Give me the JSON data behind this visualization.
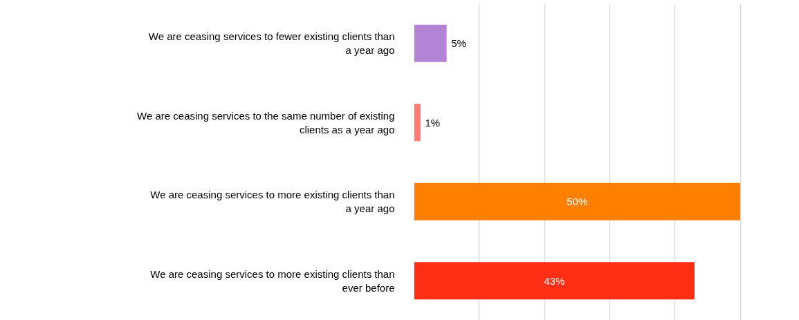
{
  "chart_data": {
    "type": "bar",
    "orientation": "horizontal",
    "categories": [
      "We are ceasing services to fewer existing clients than a year ago",
      "We are ceasing services to the same number of existing clients as a year ago",
      "We are ceasing services to more existing clients than a year ago",
      "We are ceasing services to more existing clients than ever before"
    ],
    "values": [
      5,
      1,
      50,
      43
    ],
    "colors": [
      "#b383d6",
      "#ff7b72",
      "#ff7f00",
      "#ff2f16"
    ],
    "value_labels": [
      "5%",
      "1%",
      "50%",
      "43%"
    ],
    "grid": "x",
    "tick_labels": "y"
  }
}
